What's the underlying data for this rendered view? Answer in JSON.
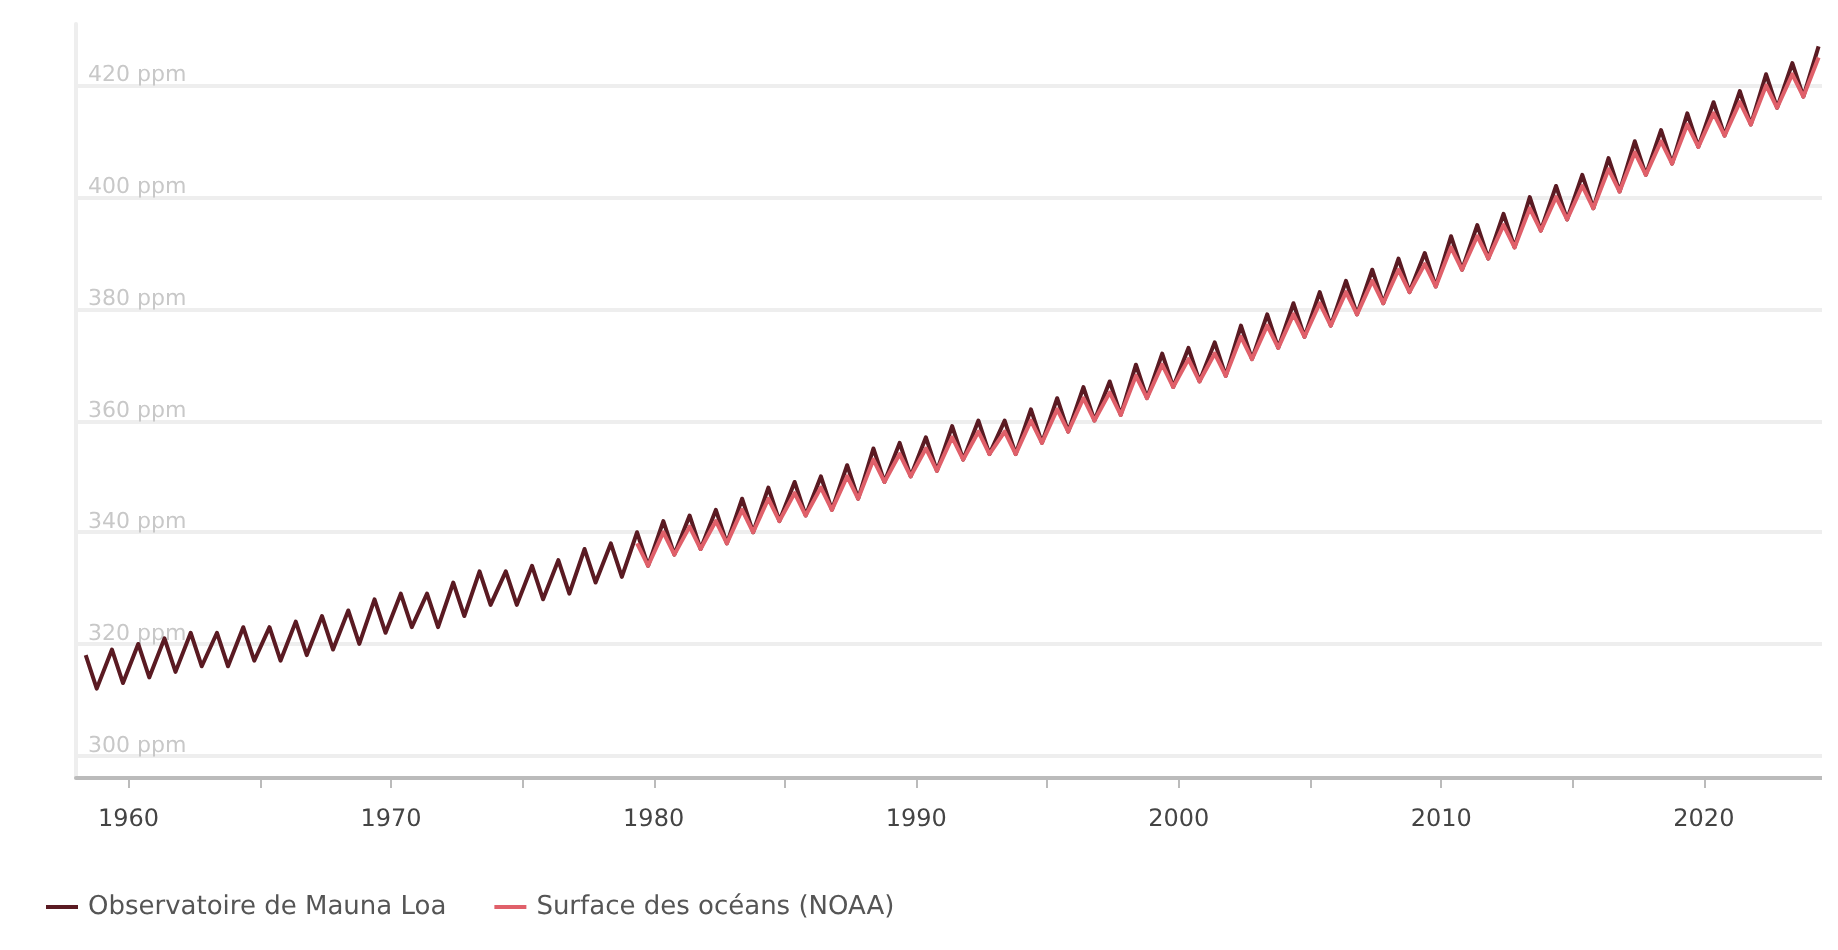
{
  "chart_data": {
    "type": "line",
    "xlim": [
      1958,
      2024.5
    ],
    "ylim": [
      296,
      431
    ],
    "xticks": [
      1960,
      {
        "value": 1965,
        "label": null
      },
      1970,
      {
        "value": 1975,
        "label": null
      },
      1980,
      {
        "value": 1985,
        "label": null
      },
      1990,
      {
        "value": 1995,
        "label": null
      },
      2000,
      {
        "value": 2005,
        "label": null
      },
      2010,
      {
        "value": 2015,
        "label": null
      },
      2020
    ],
    "yticks": [
      {
        "value": 300,
        "label": "300 ppm"
      },
      {
        "value": 320,
        "label": "320 ppm"
      },
      {
        "value": 340,
        "label": "340 ppm"
      },
      {
        "value": 360,
        "label": "360 ppm"
      },
      {
        "value": 380,
        "label": "380 ppm"
      },
      {
        "value": 400,
        "label": "400 ppm"
      },
      {
        "value": 420,
        "label": "420 ppm"
      }
    ],
    "grid": "y",
    "legend": "bottom left",
    "marker": "none",
    "line_style": "solid",
    "series": [
      {
        "name": "Observatoire de Mauna Loa",
        "color": "#5a1a22",
        "x": [
          1958.37,
          1958.79,
          1959.37,
          1959.79,
          1960.37,
          1960.79,
          1961.37,
          1961.79,
          1962.37,
          1962.79,
          1963.37,
          1963.79,
          1964.37,
          1964.79,
          1965.37,
          1965.79,
          1966.37,
          1966.79,
          1967.37,
          1967.79,
          1968.37,
          1968.79,
          1969.37,
          1969.79,
          1970.37,
          1970.79,
          1971.37,
          1971.79,
          1972.37,
          1972.79,
          1973.37,
          1973.79,
          1974.37,
          1974.79,
          1975.37,
          1975.79,
          1976.37,
          1976.79,
          1977.37,
          1977.79,
          1978.37,
          1978.79,
          1979.37,
          1979.79,
          1980.37,
          1980.79,
          1981.37,
          1981.79,
          1982.37,
          1982.79,
          1983.37,
          1983.79,
          1984.37,
          1984.79,
          1985.37,
          1985.79,
          1986.37,
          1986.79,
          1987.37,
          1987.79,
          1988.37,
          1988.79,
          1989.37,
          1989.79,
          1990.37,
          1990.79,
          1991.37,
          1991.79,
          1992.37,
          1992.79,
          1993.37,
          1993.79,
          1994.37,
          1994.79,
          1995.37,
          1995.79,
          1996.37,
          1996.79,
          1997.37,
          1997.79,
          1998.37,
          1998.79,
          1999.37,
          1999.79,
          2000.37,
          2000.79,
          2001.37,
          2001.79,
          2002.37,
          2002.79,
          2003.37,
          2003.79,
          2004.37,
          2004.79,
          2005.37,
          2005.79,
          2006.37,
          2006.79,
          2007.37,
          2007.79,
          2008.37,
          2008.79,
          2009.37,
          2009.79,
          2010.37,
          2010.79,
          2011.37,
          2011.79,
          2012.37,
          2012.79,
          2013.37,
          2013.79,
          2014.37,
          2014.79,
          2015.37,
          2015.79,
          2016.37,
          2016.79,
          2017.37,
          2017.79,
          2018.37,
          2018.79,
          2019.37,
          2019.79,
          2020.37,
          2020.79,
          2021.37,
          2021.79,
          2022.37,
          2022.79,
          2023.37,
          2023.79,
          2024.37
        ],
        "values": [
          318,
          312,
          319,
          313,
          320,
          314,
          321,
          315,
          322,
          316,
          322,
          316,
          323,
          317,
          323,
          317,
          324,
          318,
          325,
          319,
          326,
          320,
          328,
          322,
          329,
          323,
          329,
          323,
          331,
          325,
          333,
          327,
          333,
          327,
          334,
          328,
          335,
          329,
          337,
          331,
          338,
          332,
          340,
          334,
          342,
          336,
          343,
          337,
          344,
          338,
          346,
          340,
          348,
          342,
          349,
          343,
          350,
          344,
          352,
          346,
          355,
          349,
          356,
          350,
          357,
          351,
          359,
          353,
          360,
          354,
          360,
          354,
          362,
          356,
          364,
          358,
          366,
          360,
          367,
          361,
          370,
          364,
          372,
          366,
          373,
          367,
          374,
          368,
          377,
          371,
          379,
          373,
          381,
          375,
          383,
          377,
          385,
          379,
          387,
          381,
          389,
          383,
          390,
          384,
          393,
          387,
          395,
          389,
          397,
          391,
          400,
          394,
          402,
          396,
          404,
          398,
          407,
          401,
          410,
          404,
          412,
          406,
          415,
          409,
          417,
          411,
          419,
          413,
          422,
          416,
          424,
          418,
          427
        ]
      },
      {
        "name": "Surface des océans (NOAA)",
        "color": "#e0606a",
        "x": [
          1979.37,
          1979.79,
          1980.37,
          1980.79,
          1981.37,
          1981.79,
          1982.37,
          1982.79,
          1983.37,
          1983.79,
          1984.37,
          1984.79,
          1985.37,
          1985.79,
          1986.37,
          1986.79,
          1987.37,
          1987.79,
          1988.37,
          1988.79,
          1989.37,
          1989.79,
          1990.37,
          1990.79,
          1991.37,
          1991.79,
          1992.37,
          1992.79,
          1993.37,
          1993.79,
          1994.37,
          1994.79,
          1995.37,
          1995.79,
          1996.37,
          1996.79,
          1997.37,
          1997.79,
          1998.37,
          1998.79,
          1999.37,
          1999.79,
          2000.37,
          2000.79,
          2001.37,
          2001.79,
          2002.37,
          2002.79,
          2003.37,
          2003.79,
          2004.37,
          2004.79,
          2005.37,
          2005.79,
          2006.37,
          2006.79,
          2007.37,
          2007.79,
          2008.37,
          2008.79,
          2009.37,
          2009.79,
          2010.37,
          2010.79,
          2011.37,
          2011.79,
          2012.37,
          2012.79,
          2013.37,
          2013.79,
          2014.37,
          2014.79,
          2015.37,
          2015.79,
          2016.37,
          2016.79,
          2017.37,
          2017.79,
          2018.37,
          2018.79,
          2019.37,
          2019.79,
          2020.37,
          2020.79,
          2021.37,
          2021.79,
          2022.37,
          2022.79,
          2023.37,
          2023.79,
          2024.37
        ],
        "values": [
          338,
          334,
          340,
          336,
          341,
          337,
          342,
          338,
          344,
          340,
          346,
          342,
          347,
          343,
          348,
          344,
          350,
          346,
          353,
          349,
          354,
          350,
          355,
          351,
          357,
          353,
          358,
          354,
          358,
          354,
          360,
          356,
          362,
          358,
          364,
          360,
          365,
          361,
          368,
          364,
          370,
          366,
          371,
          367,
          372,
          368,
          375,
          371,
          377,
          373,
          379,
          375,
          381,
          377,
          383,
          379,
          385,
          381,
          387,
          383,
          388,
          384,
          391,
          387,
          393,
          389,
          395,
          391,
          398,
          394,
          400,
          396,
          402,
          398,
          405,
          401,
          408,
          404,
          410,
          406,
          413,
          409,
          415,
          411,
          417,
          413,
          420,
          416,
          422,
          418,
          425
        ]
      }
    ]
  }
}
